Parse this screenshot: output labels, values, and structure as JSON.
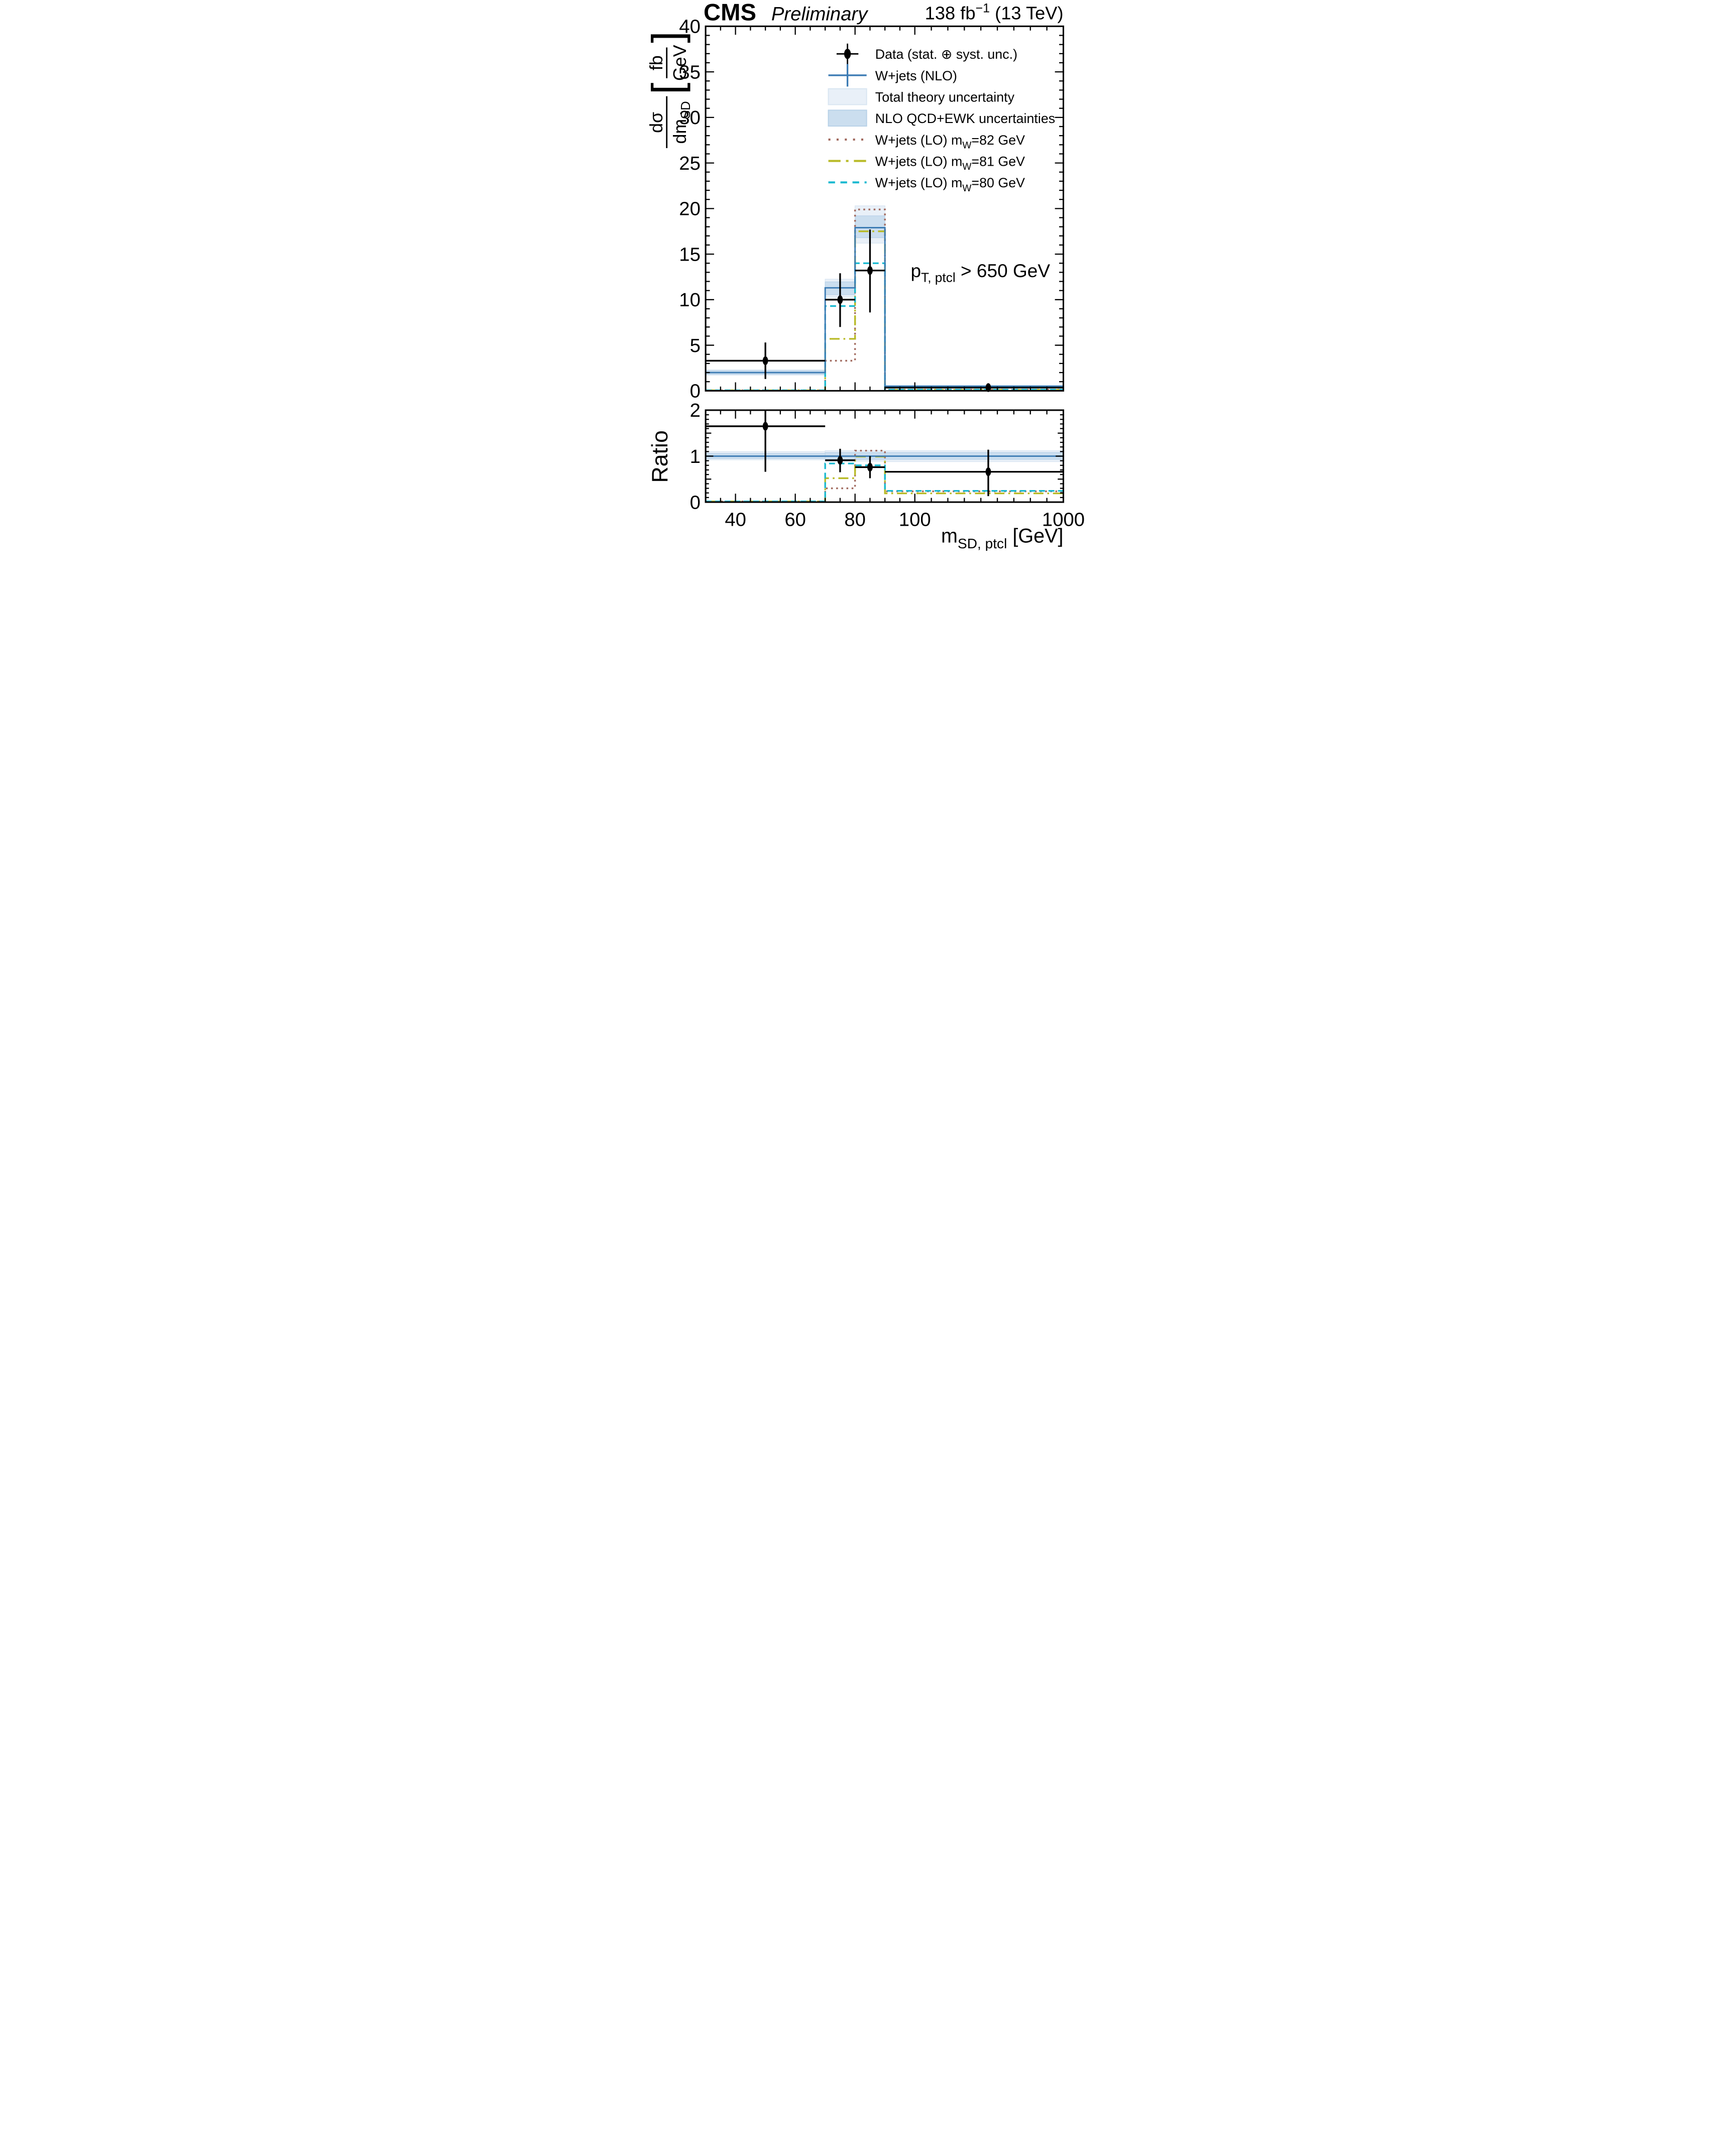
{
  "header": {
    "experiment": "CMS",
    "status": "Preliminary",
    "lumi_pre": "138 fb",
    "lumi_sup": "−1",
    "lumi_post": " (13 TeV)"
  },
  "annotation": {
    "pre": "p",
    "sub": "T, ptcl",
    "post": " > 650 GeV"
  },
  "legend": [
    {
      "id": "data",
      "type": "marker",
      "label": "Data (stat. ⊕ syst. unc.)",
      "color": "#000000"
    },
    {
      "id": "nlo",
      "type": "cross",
      "label": "W+jets (NLO)",
      "color": "#3a7ab3"
    },
    {
      "id": "total_unc",
      "type": "box",
      "label": "Total theory uncertainty",
      "color": "#e9f0f8",
      "edge": "#d9e6f2"
    },
    {
      "id": "qcdewk_unc",
      "type": "box",
      "label": "NLO QCD+EWK uncertainties",
      "color": "#cbdeef",
      "edge": "#b9d2e8"
    },
    {
      "id": "lo_mw82",
      "type": "line-dotted",
      "label_pre": "W+jets (LO) m",
      "label_sub": "W",
      "label_post": "=82 GeV",
      "color": "#a16a5e"
    },
    {
      "id": "lo_mw81",
      "type": "line-dashdot",
      "label_pre": "W+jets (LO) m",
      "label_sub": "W",
      "label_post": "=81 GeV",
      "color": "#b8ba25"
    },
    {
      "id": "lo_mw80",
      "type": "line-dashed",
      "label_pre": "W+jets (LO) m",
      "label_sub": "W",
      "label_post": "=80 GeV",
      "color": "#18b9d0"
    }
  ],
  "axis_titles": {
    "x_pre": "m",
    "x_sub": "SD, ptcl",
    "x_post": " [GeV]",
    "y_num": "dσ",
    "y_den_pre": "dm",
    "y_den_sub": "SD",
    "y_unit_open": "[",
    "y_unit_num": "fb",
    "y_unit_den": "GeV",
    "y_unit_close": "]",
    "ratio": "Ratio"
  },
  "chart_data": {
    "type": "bar",
    "description": "CMS differential cross section dσ/dm_SD vs soft-drop jet mass with data/theory ratio panel; histogram bins with piecewise-linear x axis",
    "x_axis": {
      "range": [
        30,
        1000
      ],
      "scale": "linear 30-100 GeV, compressed linear 100-1000 GeV",
      "bin_edges": [
        30,
        70,
        80,
        90,
        1000
      ],
      "labeled_ticks": [
        40,
        60,
        80,
        100,
        1000
      ],
      "minor_step_low": 5,
      "minor_step_high": 100
    },
    "main_panel": {
      "ylim": [
        0,
        40
      ],
      "y_major_step": 5,
      "y_minor_step": 1,
      "y_tick_labels": [
        0,
        5,
        10,
        15,
        20,
        25,
        30,
        35,
        40
      ],
      "series": [
        {
          "name": "W+jets (NLO)",
          "values": [
            2.0,
            11.3,
            17.9,
            0.5
          ]
        },
        {
          "name": "W+jets (LO) mW=82 GeV",
          "values": [
            0.05,
            3.3,
            19.9,
            0.12
          ]
        },
        {
          "name": "W+jets (LO) mW=81 GeV",
          "values": [
            0.05,
            5.7,
            17.5,
            0.1
          ]
        },
        {
          "name": "W+jets (LO) mW=80 GeV",
          "values": [
            0.05,
            9.3,
            14.0,
            0.12
          ]
        }
      ],
      "band_total": [
        [
          1.72,
          2.3
        ],
        [
          10.25,
          12.25
        ],
        [
          16.2,
          20.3
        ],
        [
          0.4,
          0.6
        ]
      ],
      "band_qcdewk": [
        [
          1.82,
          2.2
        ],
        [
          10.55,
          11.95
        ],
        [
          16.8,
          19.2
        ],
        [
          0.44,
          0.56
        ]
      ],
      "data": {
        "x": [
          50,
          75,
          85,
          545
        ],
        "y": [
          3.3,
          10.0,
          13.2,
          0.35
        ],
        "y_lo": [
          1.3,
          7.0,
          8.6,
          0.07
        ],
        "y_hi": [
          5.3,
          12.9,
          17.7,
          0.6
        ]
      }
    },
    "ratio_panel": {
      "ylim": [
        0,
        2
      ],
      "y_major_step": 1,
      "y_minor_step": 0.1,
      "y_tick_labels": [
        0,
        1,
        2
      ],
      "nlo_ref": [
        1,
        1,
        1,
        1
      ],
      "band_total": [
        [
          0.92,
          1.1
        ],
        [
          0.89,
          1.12
        ],
        [
          0.89,
          1.12
        ],
        [
          0.88,
          1.12
        ]
      ],
      "band_qcdewk": [
        [
          0.95,
          1.06
        ],
        [
          0.93,
          1.08
        ],
        [
          0.93,
          1.08
        ],
        [
          0.93,
          1.08
        ]
      ],
      "lo_mw82": [
        0.015,
        0.3,
        1.12,
        0.235
      ],
      "lo_mw81": [
        0.015,
        0.52,
        0.99,
        0.19
      ],
      "lo_mw80": [
        0.015,
        0.84,
        0.8,
        0.245
      ],
      "data": {
        "x": [
          50,
          75,
          85,
          545
        ],
        "y": [
          1.65,
          0.91,
          0.76,
          0.66
        ],
        "y_lo": [
          0.66,
          0.65,
          0.52,
          0.13
        ],
        "y_hi": [
          2.65,
          1.16,
          1.0,
          1.14
        ]
      }
    }
  }
}
